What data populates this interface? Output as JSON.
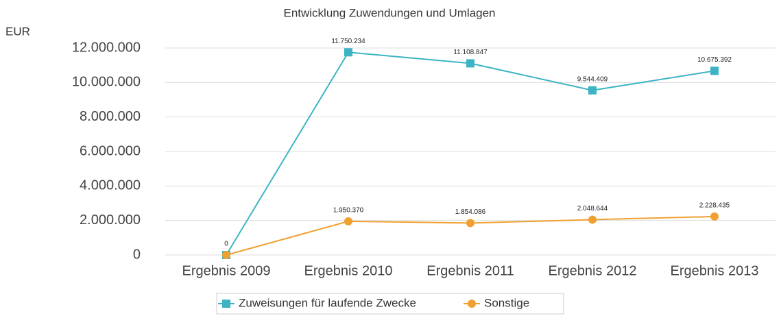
{
  "chart_data": {
    "type": "line",
    "title": "Entwicklung Zuwendungen und Umlagen",
    "y_label": "EUR",
    "categories": [
      "Ergebnis 2009",
      "Ergebnis 2010",
      "Ergebnis 2011",
      "Ergebnis 2012",
      "Ergebnis 2013"
    ],
    "series": [
      {
        "name": "Zuweisungen für laufende Zwecke",
        "color": "#3cb4c4",
        "marker": "square",
        "values": [
          0,
          11750234,
          11108847,
          9544409,
          10675392
        ],
        "value_labels": [
          null,
          "11.750.234",
          "11.108.847",
          "9.544.409",
          "10.675.392"
        ]
      },
      {
        "name": "Sonstige",
        "color": "#f0a030",
        "marker": "circle",
        "values": [
          0,
          1950370,
          1854086,
          2048644,
          2228435
        ],
        "value_labels": [
          "0",
          "1.950.370",
          "1.854.086",
          "2.048.644",
          "2.228.435"
        ]
      }
    ],
    "ylim": [
      0,
      12000000
    ],
    "yticks": [
      0,
      {
        "value": 2000000,
        "label": "2.000.000"
      },
      {
        "value": 4000000,
        "label": "4.000.000"
      },
      {
        "value": 6000000,
        "label": "6.000.000"
      },
      {
        "value": 8000000,
        "label": "8.000.000"
      },
      {
        "value": 10000000,
        "label": "10.000.000"
      },
      {
        "value": 12000000,
        "label": "12.000.000"
      }
    ],
    "grid": true,
    "legend": "bottom"
  }
}
